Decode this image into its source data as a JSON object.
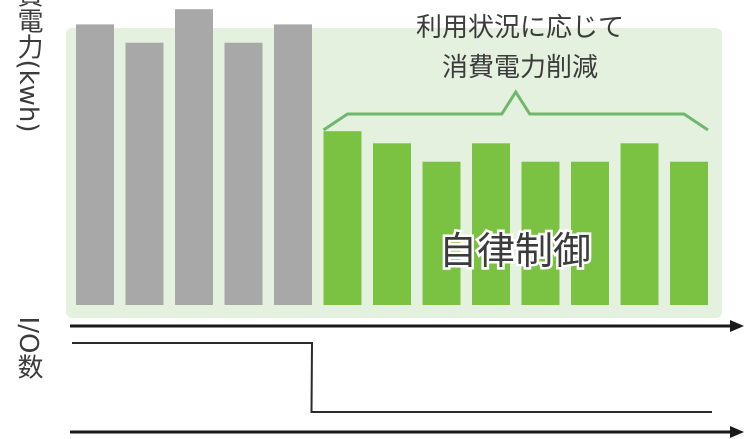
{
  "colors": {
    "power_before": "#a8a8a8",
    "power_after": "#7cc242",
    "glow": "#e4f1df",
    "axis": "#1a1a1a",
    "annotation": "#3a3a3a",
    "brace": "#6fb76a",
    "control_text": "#3f9f62",
    "io_line": "#2b2b2b"
  },
  "chart_data": {
    "type": "bar",
    "ylabel_power": "消費電力(kwh)",
    "ylabel_io": "I/O数",
    "title": "",
    "xlabel": "",
    "ylim": [
      0,
      10
    ],
    "categories": [
      "",
      "",
      "",
      "",
      "",
      "",
      "",
      "",
      "",
      "",
      "",
      "",
      ""
    ],
    "series": [
      {
        "name": "",
        "values": [
          9.2,
          8.6,
          9.7,
          8.6,
          9.2,
          5.7,
          5.3,
          4.7,
          5.3,
          4.7,
          4.7,
          5.3,
          4.7
        ]
      }
    ],
    "highlighted_range": [
      5,
      12
    ],
    "annotation": {
      "line1": "利用状況に応じて",
      "line2": "消費電力削減"
    },
    "control_label": "自律制御",
    "io_series": {
      "high": 1,
      "low": 0,
      "drop_from_bar": 4,
      "drop_to_bar": 5
    }
  }
}
